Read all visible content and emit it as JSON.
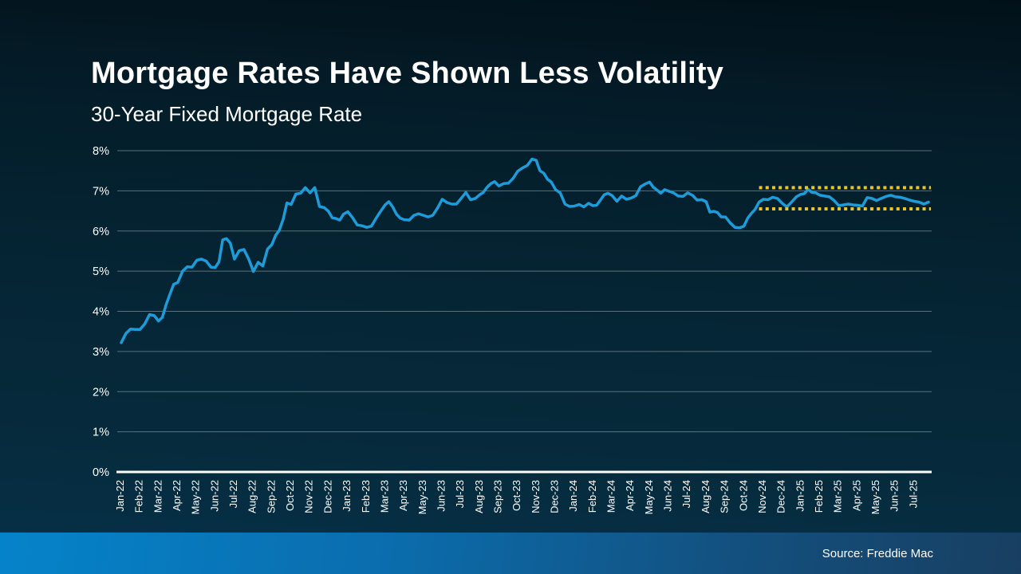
{
  "page": {
    "title": "Mortgage Rates Have Shown Less Volatility",
    "subtitle": "30-Year Fixed Mortgage Rate"
  },
  "footer": {
    "source": "Source: Freddie Mac"
  },
  "colors": {
    "background_top": "#021119",
    "background_bottom": "#063049",
    "line": "#1E9CD9",
    "annotation_yellow": "#E9C42A",
    "axis_white": "#FFFFFF",
    "gridline_gray": "#9FB0B8",
    "footer_left_blue": "#0583CA",
    "footer_right_blue": "#183F61",
    "text": "#FFFFFF"
  },
  "chart_data": {
    "type": "line",
    "title": "Mortgage Rates Have Shown Less Volatility",
    "subtitle": "30-Year Fixed Mortgage Rate",
    "xlabel": "",
    "ylabel": "",
    "ylim": [
      0,
      8
    ],
    "y_ticks": [
      "0%",
      "1%",
      "2%",
      "3%",
      "4%",
      "5%",
      "6%",
      "7%",
      "8%"
    ],
    "grid": "horizontal",
    "legend": "none",
    "x_labels": [
      "Jan-22",
      "Feb-22",
      "Mar-22",
      "Apr-22",
      "May-22",
      "Jun-22",
      "Jul-22",
      "Aug-22",
      "Sep-22",
      "Oct-22",
      "Nov-22",
      "Dec-22",
      "Jan-23",
      "Feb-23",
      "Mar-23",
      "Apr-23",
      "May-23",
      "Jun-23",
      "Jul-23",
      "Aug-23",
      "Sep-23",
      "Oct-23",
      "Nov-23",
      "Dec-23",
      "Jan-24",
      "Feb-24",
      "Mar-24",
      "Apr-24",
      "May-24",
      "Jun-24",
      "Jul-24",
      "Aug-24",
      "Sep-24",
      "Oct-24",
      "Nov-24",
      "Dec-24",
      "Jan-25",
      "Feb-25",
      "Mar-25",
      "Apr-25",
      "May-25",
      "Jun-25",
      "Jul-25"
    ],
    "series": [
      {
        "name": "30-Year Fixed Mortgage Rate",
        "color": "#1E9CD9",
        "unit": "percent",
        "weekly_values_by_month": [
          [
            3.22,
            3.45,
            3.56,
            3.55
          ],
          [
            3.55,
            3.69,
            3.92,
            3.89
          ],
          [
            3.76,
            3.85,
            4.16,
            4.42,
            4.67
          ],
          [
            4.72,
            5.0,
            5.11,
            5.1
          ],
          [
            5.27,
            5.3,
            5.25,
            5.1
          ],
          [
            5.09,
            5.23,
            5.78,
            5.81,
            5.7
          ],
          [
            5.3,
            5.51,
            5.54,
            5.3
          ],
          [
            4.99,
            5.22,
            5.13,
            5.55
          ],
          [
            5.66,
            5.89,
            6.02,
            6.29,
            6.7
          ],
          [
            6.66,
            6.92,
            6.94,
            7.08
          ],
          [
            6.95,
            7.08,
            6.61,
            6.58
          ],
          [
            6.49,
            6.33,
            6.31,
            6.27,
            6.42
          ],
          [
            6.48,
            6.33,
            6.15,
            6.13
          ],
          [
            6.09,
            6.12,
            6.32,
            6.5
          ],
          [
            6.65,
            6.73,
            6.6,
            6.42,
            6.32
          ],
          [
            6.28,
            6.27,
            6.39,
            6.43
          ],
          [
            6.39,
            6.35,
            6.39,
            6.57
          ],
          [
            6.79,
            6.71,
            6.67,
            6.67
          ],
          [
            6.81,
            6.96,
            6.78,
            6.81
          ],
          [
            6.9,
            6.96,
            7.09,
            7.18,
            7.23
          ],
          [
            7.12,
            7.18,
            7.19,
            7.31
          ],
          [
            7.49,
            7.57,
            7.63,
            7.79
          ],
          [
            7.76,
            7.5,
            7.44,
            7.29,
            7.22
          ],
          [
            7.03,
            6.95,
            6.67,
            6.61
          ],
          [
            6.62,
            6.66,
            6.6,
            6.69
          ],
          [
            6.63,
            6.64,
            6.77,
            6.9,
            6.94
          ],
          [
            6.88,
            6.74,
            6.87,
            6.79
          ],
          [
            6.82,
            6.88,
            7.1,
            7.17
          ],
          [
            7.22,
            7.09,
            7.02,
            6.94,
            7.03
          ],
          [
            6.99,
            6.95,
            6.87,
            6.86
          ],
          [
            6.95,
            6.89,
            6.77,
            6.78
          ],
          [
            6.73,
            6.47,
            6.49,
            6.46,
            6.35
          ],
          [
            6.35,
            6.2,
            6.09,
            6.08
          ],
          [
            6.12,
            6.32,
            6.44,
            6.54,
            6.72
          ],
          [
            6.79,
            6.78,
            6.84,
            6.81
          ],
          [
            6.69,
            6.6,
            6.72,
            6.85
          ],
          [
            6.91,
            6.93,
            7.04,
            6.96,
            6.95
          ],
          [
            6.89,
            6.87,
            6.85,
            6.76
          ],
          [
            6.63,
            6.65,
            6.67,
            6.65
          ],
          [
            6.64,
            6.62,
            6.83,
            6.81
          ],
          [
            6.76,
            6.81,
            6.86,
            6.89
          ],
          [
            6.85,
            6.84,
            6.81,
            6.77
          ],
          [
            6.74,
            6.72,
            6.67,
            6.72
          ]
        ]
      }
    ],
    "annotations": [
      {
        "type": "dotted-hline",
        "label": "recent range high",
        "value": 7.08,
        "start_month_index": 33.9,
        "end_month_index": 43,
        "color": "#E9C42A"
      },
      {
        "type": "dotted-hline",
        "label": "recent range low",
        "value": 6.55,
        "start_month_index": 33.9,
        "end_month_index": 43,
        "color": "#E9C42A"
      }
    ]
  }
}
